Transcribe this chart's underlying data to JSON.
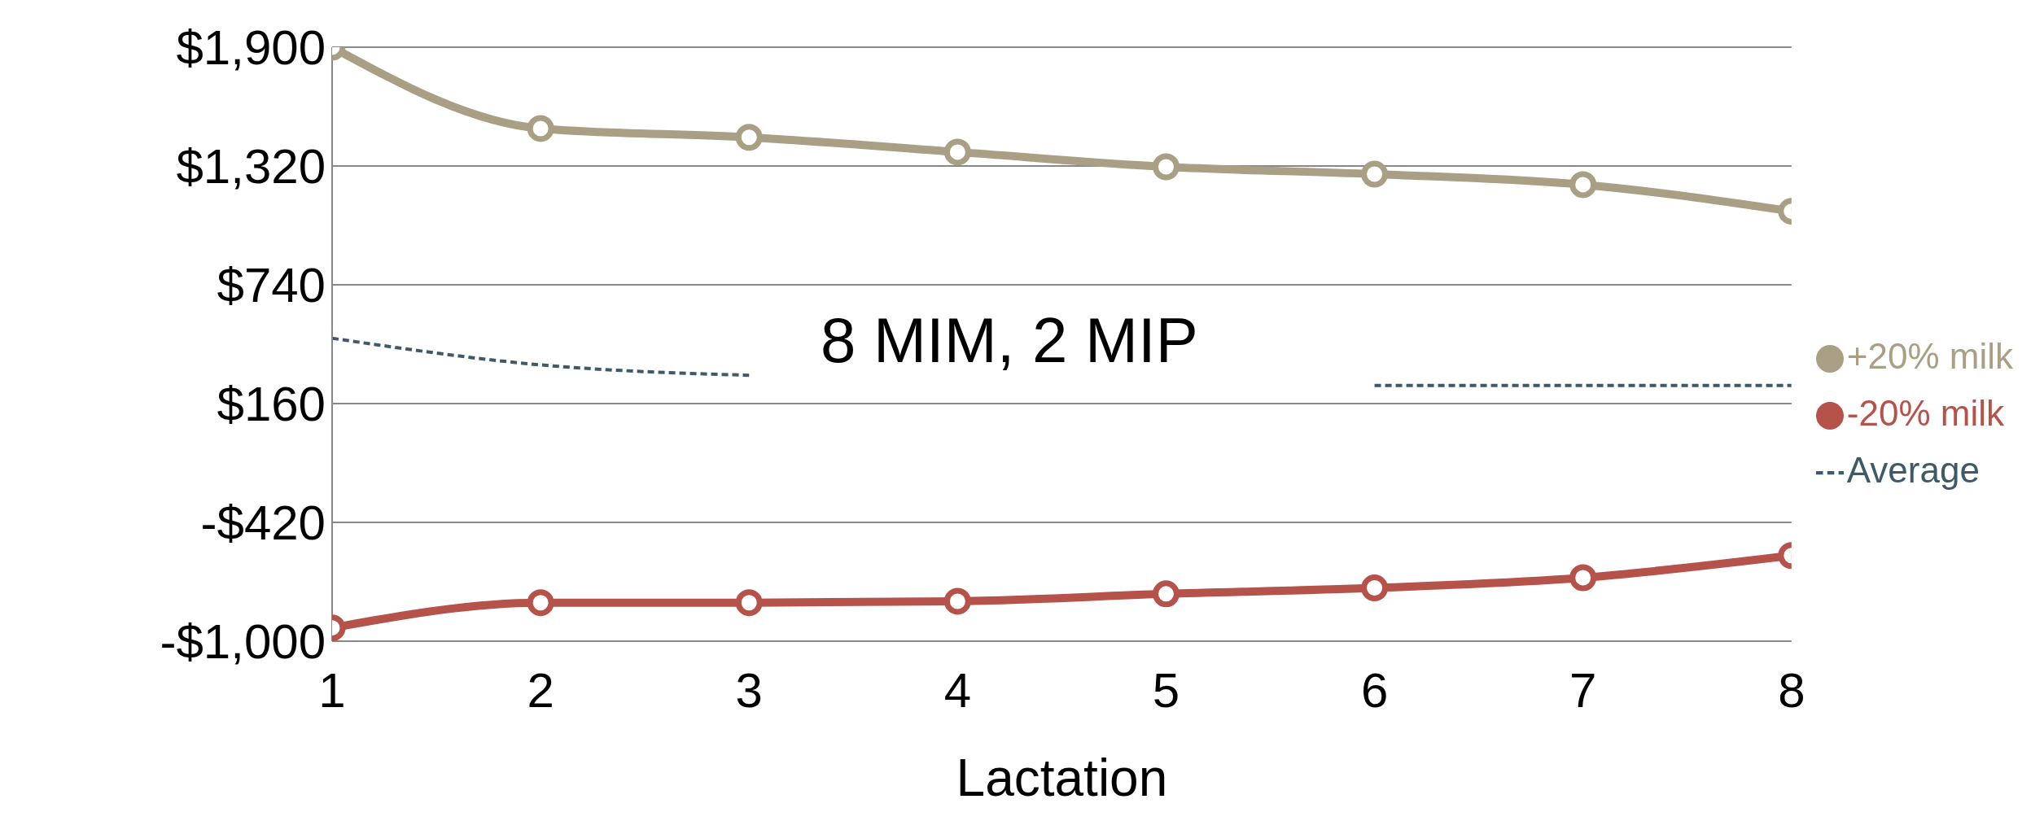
{
  "chart_data": {
    "type": "line",
    "xlabel": "Lactation",
    "categories": [
      "1",
      "2",
      "3",
      "4",
      "5",
      "6",
      "7",
      "8"
    ],
    "series": [
      {
        "name": "Average",
        "color": "#3d5a66",
        "line_style": "dashed",
        "marker": "none",
        "values": [
          479,
          349,
          298,
          null,
          null,
          248,
          248,
          248
        ]
      },
      {
        "name": "+20% milk",
        "color": "#a89f85",
        "values": [
          1900,
          1503,
          1460,
          1388,
          1316,
          1280,
          1229,
          1099
        ]
      },
      {
        "name": "-20% milk",
        "color": "#b5524a",
        "values": [
          -935,
          -812,
          -812,
          -805,
          -769,
          -740,
          -690,
          -582
        ]
      }
    ],
    "marker": "circle",
    "line_style": "solid",
    "ylim": [
      -1000,
      1900
    ],
    "yticks": [
      {
        "value": -1000,
        "label": "-$1,000"
      },
      {
        "value": -420,
        "label": "-$420"
      },
      {
        "value": 160,
        "label": "$160"
      },
      {
        "value": 740,
        "label": "$740"
      },
      {
        "value": 1320,
        "label": "$1,320"
      },
      {
        "value": 1900,
        "label": "$1,900"
      }
    ],
    "grid": "y",
    "legend": "right",
    "annotations": [
      "8 MIM, 2 MIP"
    ]
  }
}
